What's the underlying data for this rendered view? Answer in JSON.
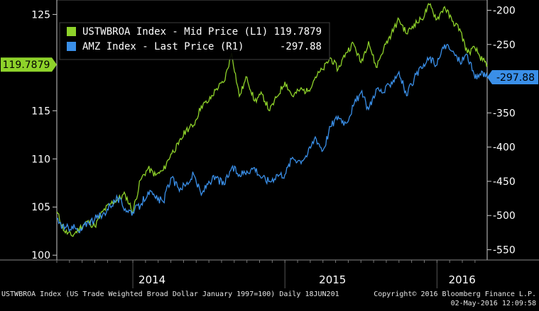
{
  "chart_data": {
    "type": "line",
    "x_years": [
      "2014",
      "2015",
      "2016"
    ],
    "left_axis": {
      "ticks": [
        100,
        105,
        110,
        115,
        125
      ],
      "range": [
        99.5,
        126.5
      ]
    },
    "right_axis": {
      "ticks": [
        -200,
        -250,
        -350,
        -400,
        -450,
        -500,
        -550
      ],
      "range": [
        -565,
        -185
      ]
    },
    "legend": [
      {
        "text": "USTWBROA Index - Mid Price (L1)",
        "value": "119.7879",
        "color": "#8ed22a"
      },
      {
        "text": "AMZ Index - Last Price (R1)",
        "value": "-297.88",
        "color": "#3a8fe8"
      }
    ],
    "last_labels": {
      "left": "119.7879",
      "right": "-297.88"
    },
    "series": [
      {
        "name": "USTWBROA Index - Mid Price (L1)",
        "axis": "left",
        "color": "#8ed22a",
        "x": [
          2013.5,
          2013.55,
          2013.6,
          2013.65,
          2013.7,
          2013.75,
          2013.8,
          2013.85,
          2013.9,
          2013.95,
          2014.0,
          2014.05,
          2014.1,
          2014.15,
          2014.2,
          2014.25,
          2014.3,
          2014.35,
          2014.4,
          2014.45,
          2014.5,
          2014.55,
          2014.6,
          2014.65,
          2014.7,
          2014.75,
          2014.8,
          2014.85,
          2014.9,
          2014.95,
          2015.0,
          2015.05,
          2015.1,
          2015.15,
          2015.2,
          2015.25,
          2015.3,
          2015.35,
          2015.4,
          2015.45,
          2015.5,
          2015.55,
          2015.6,
          2015.65,
          2015.7,
          2015.75,
          2015.8,
          2015.85,
          2015.9,
          2015.95,
          2016.0,
          2016.05,
          2016.1,
          2016.15,
          2016.2,
          2016.25,
          2016.3,
          2016.33
        ],
        "y": [
          104.5,
          102.5,
          102.0,
          102.8,
          103.5,
          103.0,
          104.5,
          105.3,
          105.8,
          106.3,
          104.5,
          107.8,
          109.0,
          108.3,
          108.8,
          110.5,
          111.5,
          113.0,
          113.5,
          115.5,
          116.0,
          117.3,
          118.0,
          121.0,
          116.5,
          118.5,
          116.0,
          116.7,
          115.0,
          116.5,
          118.0,
          116.5,
          117.2,
          117.0,
          118.5,
          119.3,
          120.5,
          119.3,
          121.0,
          122.0,
          120.0,
          122.2,
          119.5,
          121.5,
          123.0,
          124.5,
          123.0,
          124.0,
          124.5,
          126.0,
          124.5,
          125.8,
          124.3,
          123.5,
          121.0,
          121.5,
          120.2,
          119.8
        ]
      },
      {
        "name": "AMZ Index - Last Price (R1)",
        "axis": "right",
        "color": "#3a8fe8",
        "x": [
          2013.5,
          2013.55,
          2013.6,
          2013.65,
          2013.7,
          2013.75,
          2013.8,
          2013.85,
          2013.9,
          2013.95,
          2014.0,
          2014.05,
          2014.1,
          2014.15,
          2014.2,
          2014.25,
          2014.3,
          2014.35,
          2014.4,
          2014.45,
          2014.5,
          2014.55,
          2014.6,
          2014.65,
          2014.7,
          2014.75,
          2014.8,
          2014.85,
          2014.9,
          2014.95,
          2015.0,
          2015.05,
          2015.1,
          2015.15,
          2015.2,
          2015.25,
          2015.3,
          2015.35,
          2015.4,
          2015.45,
          2015.5,
          2015.55,
          2015.6,
          2015.65,
          2015.7,
          2015.75,
          2015.8,
          2015.85,
          2015.9,
          2015.95,
          2016.0,
          2016.05,
          2016.1,
          2016.15,
          2016.2,
          2016.25,
          2016.3,
          2016.33
        ],
        "y": [
          -505,
          -520,
          -515,
          -525,
          -510,
          -505,
          -500,
          -485,
          -475,
          -490,
          -495,
          -485,
          -465,
          -475,
          -480,
          -445,
          -460,
          -455,
          -440,
          -470,
          -450,
          -445,
          -455,
          -430,
          -440,
          -435,
          -430,
          -445,
          -450,
          -440,
          -440,
          -415,
          -420,
          -410,
          -385,
          -405,
          -370,
          -355,
          -365,
          -340,
          -320,
          -345,
          -315,
          -320,
          -305,
          -290,
          -325,
          -300,
          -285,
          -270,
          -280,
          -250,
          -260,
          -275,
          -265,
          -300,
          -290,
          -298
        ]
      }
    ]
  },
  "footer": {
    "left": "USTWBROA Index (US Trade Weighted Broad Dollar January 1997=100)  Daily 18JUN201",
    "right_top": "Copyright© 2016 Bloomberg Finance L.P.",
    "right_bottom": "02-May-2016 12:09:58"
  }
}
